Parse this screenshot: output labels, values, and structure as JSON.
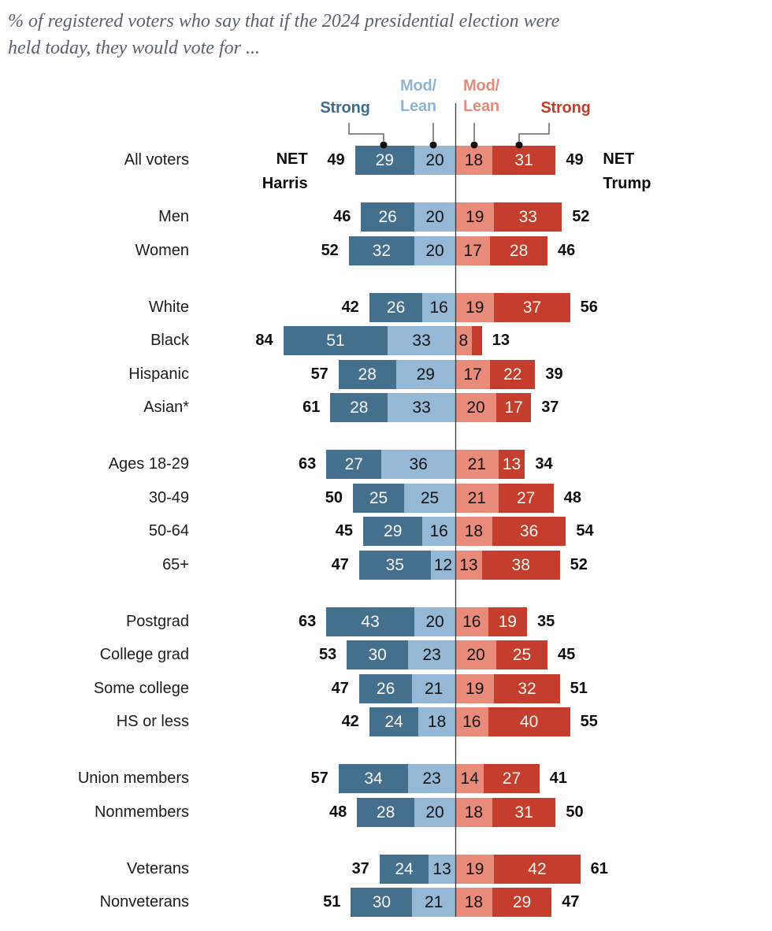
{
  "title": {
    "line1": "% of registered voters who say that if the 2024 presidential election were",
    "line2": "held today, they would vote for ..."
  },
  "legend": {
    "strong_harris": "Strong",
    "modlean_harris_line1": "Mod/",
    "modlean_harris_line2": "Lean",
    "modlean_trump_line1": "Mod/",
    "modlean_trump_line2": "Lean",
    "strong_trump": "Strong"
  },
  "net_annotations": {
    "harris_line1": "NET",
    "harris_line2": "Harris",
    "trump_line1": "NET",
    "trump_line2": "Trump"
  },
  "colors": {
    "strong_harris": "#44708e",
    "lean_harris": "#94b8d5",
    "lean_trump": "#e98b7b",
    "strong_trump": "#c53d2c",
    "bar_text_light": "#f7f5f2",
    "bar_text_dark": "#151515",
    "axis_line": "#3a3a3a",
    "connector_line": "#4a4a4a",
    "connector_dot": "#101010",
    "title_text": "#59626c",
    "label_text": "#1d1d1d"
  },
  "chart_data": {
    "type": "bar",
    "subtype": "diverging-stacked-horizontal",
    "title": "% of registered voters who say that if the 2024 presidential election were held today, they would vote for ...",
    "unit": "percent",
    "legend_position": "top",
    "series_names": [
      "Strong Harris",
      "Mod/Lean Harris",
      "Mod/Lean Trump",
      "Strong Trump"
    ],
    "axis_note": "center axis at 0; Harris segments extend left, Trump segments extend right",
    "groups": [
      {
        "rows": [
          {
            "label": "All voters",
            "net_harris": 49,
            "values": [
              29,
              20,
              18,
              31
            ],
            "net_trump": 49,
            "show_net_annotations": true
          }
        ]
      },
      {
        "rows": [
          {
            "label": "Men",
            "net_harris": 46,
            "values": [
              26,
              20,
              19,
              33
            ],
            "net_trump": 52
          },
          {
            "label": "Women",
            "net_harris": 52,
            "values": [
              32,
              20,
              17,
              28
            ],
            "net_trump": 46
          }
        ]
      },
      {
        "rows": [
          {
            "label": "White",
            "net_harris": 42,
            "values": [
              26,
              16,
              19,
              37
            ],
            "net_trump": 56
          },
          {
            "label": "Black",
            "net_harris": 84,
            "values": [
              51,
              33,
              8,
              5
            ],
            "value_labels": [
              "51",
              "33",
              "8",
              ""
            ],
            "net_trump": 13
          },
          {
            "label": "Hispanic",
            "net_harris": 57,
            "values": [
              28,
              29,
              17,
              22
            ],
            "net_trump": 39
          },
          {
            "label": "Asian*",
            "net_harris": 61,
            "values": [
              28,
              33,
              20,
              17
            ],
            "net_trump": 37
          }
        ]
      },
      {
        "rows": [
          {
            "label": "Ages 18-29",
            "net_harris": 63,
            "values": [
              27,
              36,
              21,
              13
            ],
            "net_trump": 34
          },
          {
            "label": "30-49",
            "net_harris": 50,
            "values": [
              25,
              25,
              21,
              27
            ],
            "net_trump": 48
          },
          {
            "label": "50-64",
            "net_harris": 45,
            "values": [
              29,
              16,
              18,
              36
            ],
            "net_trump": 54
          },
          {
            "label": "65+",
            "net_harris": 47,
            "values": [
              35,
              12,
              13,
              38
            ],
            "net_trump": 52
          }
        ]
      },
      {
        "rows": [
          {
            "label": "Postgrad",
            "net_harris": 63,
            "values": [
              43,
              20,
              16,
              19
            ],
            "net_trump": 35
          },
          {
            "label": "College grad",
            "net_harris": 53,
            "values": [
              30,
              23,
              20,
              25
            ],
            "net_trump": 45
          },
          {
            "label": "Some college",
            "net_harris": 47,
            "values": [
              26,
              21,
              19,
              32
            ],
            "net_trump": 51
          },
          {
            "label": "HS or less",
            "net_harris": 42,
            "values": [
              24,
              18,
              16,
              40
            ],
            "net_trump": 55
          }
        ]
      },
      {
        "rows": [
          {
            "label": "Union members",
            "net_harris": 57,
            "values": [
              34,
              23,
              14,
              27
            ],
            "net_trump": 41
          },
          {
            "label": "Nonmembers",
            "net_harris": 48,
            "values": [
              28,
              20,
              18,
              31
            ],
            "net_trump": 50
          }
        ]
      },
      {
        "rows": [
          {
            "label": "Veterans",
            "net_harris": 37,
            "values": [
              24,
              13,
              19,
              42
            ],
            "net_trump": 61
          },
          {
            "label": "Nonveterans",
            "net_harris": 51,
            "values": [
              30,
              21,
              18,
              29
            ],
            "net_trump": 47
          }
        ]
      }
    ]
  }
}
